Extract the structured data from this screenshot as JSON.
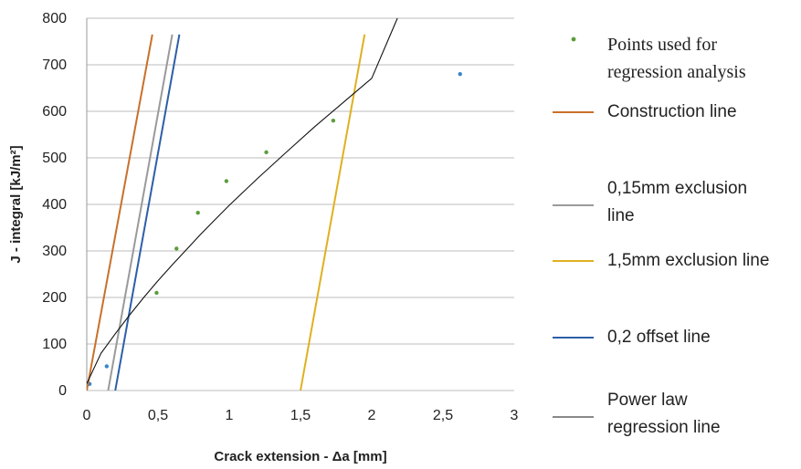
{
  "chart_data": {
    "type": "line",
    "title": "",
    "xlabel": "Crack extension - Δa [mm]",
    "ylabel": "J - integral [kJ/m²]",
    "xlim": [
      0,
      3
    ],
    "ylim": [
      0,
      800
    ],
    "x_ticks": [
      "0",
      "0,5",
      "1",
      "1,5",
      "2",
      "2,5",
      "3"
    ],
    "y_ticks": [
      "0",
      "100",
      "200",
      "300",
      "400",
      "500",
      "600",
      "700",
      "800"
    ],
    "grid": "horizontal",
    "legend_position": "right",
    "series": [
      {
        "name": "Points used for regression analysis",
        "kind": "scatter",
        "color": "#5a9e3a",
        "points": [
          [
            0.49,
            210
          ],
          [
            0.63,
            305
          ],
          [
            0.78,
            382
          ],
          [
            0.98,
            450
          ],
          [
            1.26,
            512
          ],
          [
            1.73,
            580
          ]
        ]
      },
      {
        "name": "",
        "kind": "scatter",
        "color": "#3a86c8",
        "points": [
          [
            0.02,
            14
          ],
          [
            0.14,
            52
          ],
          [
            2.62,
            680
          ]
        ]
      },
      {
        "name": "Construction line",
        "kind": "line",
        "color": "#c8702a",
        "points": [
          [
            0,
            0
          ],
          [
            0.46,
            765
          ]
        ]
      },
      {
        "name": "0,15mm exclusion line",
        "kind": "line",
        "color": "#9a9a9a",
        "points": [
          [
            0.15,
            0
          ],
          [
            0.6,
            765
          ]
        ]
      },
      {
        "name": "1,5mm exclusion line",
        "kind": "line",
        "color": "#e0b020",
        "points": [
          [
            1.5,
            0
          ],
          [
            1.95,
            765
          ]
        ]
      },
      {
        "name": "0,2 offset line",
        "kind": "line",
        "color": "#2e5ea8",
        "points": [
          [
            0.2,
            0
          ],
          [
            0.65,
            765
          ]
        ]
      },
      {
        "name": "Power law regression line",
        "kind": "line",
        "color": "#111111",
        "points": [
          [
            0,
            15
          ],
          [
            0.1,
            80
          ],
          [
            0.2,
            122
          ],
          [
            0.3,
            162
          ],
          [
            0.4,
            200
          ],
          [
            0.5,
            236
          ],
          [
            0.6,
            270
          ],
          [
            0.7,
            303
          ],
          [
            0.8,
            336
          ],
          [
            0.9,
            367
          ],
          [
            1.0,
            398
          ],
          [
            1.2,
            456
          ],
          [
            1.4,
            512
          ],
          [
            1.6,
            567
          ],
          [
            1.8,
            619
          ],
          [
            2.0,
            671
          ],
          [
            2.18,
            800
          ]
        ]
      }
    ],
    "legend": [
      {
        "label_lines": [
          "Points used for",
          "regression analysis"
        ],
        "color": "#5a9e3a",
        "marker": "dot",
        "serif": true
      },
      {
        "label_lines": [
          "Construction line"
        ],
        "color": "#c8702a",
        "marker": "line",
        "serif": false
      },
      {
        "label_lines": [
          "0,15mm exclusion",
          "line"
        ],
        "color": "#9a9a9a",
        "marker": "line",
        "serif": false
      },
      {
        "label_lines": [
          "1,5mm exclusion line"
        ],
        "color": "#e0b020",
        "marker": "line",
        "serif": false
      },
      {
        "label_lines": [
          "0,2 offset line"
        ],
        "color": "#2e5ea8",
        "marker": "line",
        "serif": false
      },
      {
        "label_lines": [
          "Power law",
          "regression line"
        ],
        "color": "#111111",
        "marker": "line",
        "serif": false
      }
    ]
  }
}
